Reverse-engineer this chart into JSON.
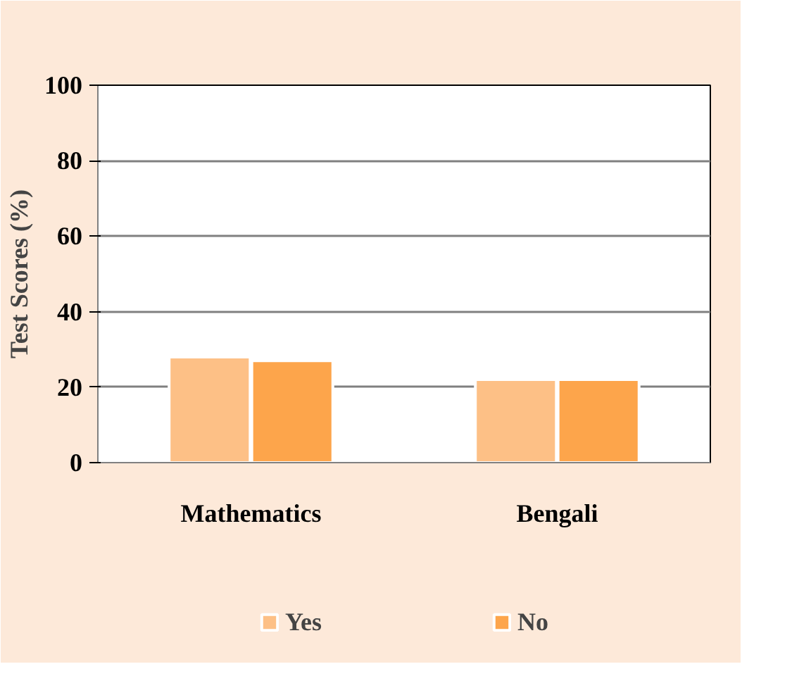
{
  "chart_data": {
    "type": "bar",
    "ylabel": "Test Scores (%)",
    "categories": [
      "Mathematics",
      "Bengali"
    ],
    "series": [
      {
        "name": "Yes",
        "color": "#fdc086",
        "values": [
          28,
          22
        ]
      },
      {
        "name": "No",
        "color": "#fda54b",
        "values": [
          27,
          22
        ]
      }
    ],
    "ylim": [
      0,
      100
    ],
    "yticks": [
      0,
      20,
      40,
      60,
      80,
      100
    ],
    "grid": "y",
    "legend": "bottom"
  }
}
